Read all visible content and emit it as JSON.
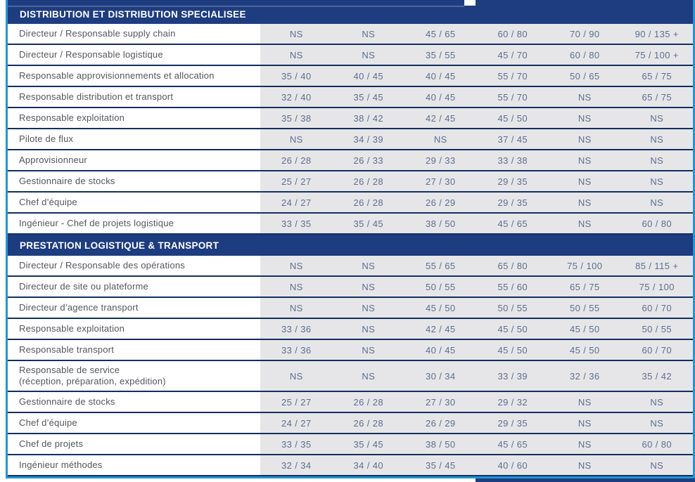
{
  "theme": {
    "navy": "#1e3c80",
    "cyan_border": "#2196d4",
    "cell_gray": "#e6e6e8",
    "row_separator": "#142f5f",
    "title_text": "#53565c",
    "value_text": "#5e6e8e",
    "header_text": "#ffffff"
  },
  "table": {
    "value_columns": 6,
    "sections": [
      {
        "title": "DISTRIBUTION ET DISTRIBUTION SPECIALISEE",
        "rows": [
          {
            "label": "Directeur / Responsable supply chain",
            "values": [
              "NS",
              "NS",
              "45 / 65",
              "60 / 80",
              "70 / 90",
              "90 / 135 +"
            ]
          },
          {
            "label": "Directeur / Responsable logistique",
            "values": [
              "NS",
              "NS",
              "35 / 55",
              "45 / 70",
              "60 / 80",
              "75 / 100 +"
            ]
          },
          {
            "label": "Responsable approvisionnements et allocation",
            "values": [
              "35 / 40",
              "40 / 45",
              "40 / 45",
              "55 / 70",
              "50 / 65",
              "65 / 75"
            ]
          },
          {
            "label": "Responsable distribution et transport",
            "values": [
              "32 / 40",
              "35 / 45",
              "40 / 45",
              "55 / 70",
              "NS",
              "65 / 75"
            ]
          },
          {
            "label": "Responsable exploitation",
            "values": [
              "35 / 38",
              "38 / 42",
              "42 / 45",
              "45 / 50",
              "NS",
              "NS"
            ]
          },
          {
            "label": "Pilote de flux",
            "values": [
              "NS",
              "34 / 39",
              "NS",
              "37 / 45",
              "NS",
              "NS"
            ]
          },
          {
            "label": "Approvisionneur",
            "values": [
              "26 / 28",
              "26 / 33",
              "29 / 33",
              "33 / 38",
              "NS",
              "NS"
            ]
          },
          {
            "label": "Gestionnaire de stocks",
            "values": [
              "25 / 27",
              "26 / 28",
              "27 / 30",
              "29 / 35",
              "NS",
              "NS"
            ]
          },
          {
            "label": "Chef d’équipe",
            "values": [
              "24 / 27",
              "26 / 28",
              "26 / 29",
              "29 / 35",
              "NS",
              "NS"
            ]
          },
          {
            "label": "Ingénieur - Chef de projets logistique",
            "values": [
              "33 / 35",
              "35 / 45",
              "38 / 50",
              "45 / 65",
              "NS",
              "60 / 80"
            ]
          }
        ]
      },
      {
        "title": "PRESTATION LOGISTIQUE & TRANSPORT",
        "rows": [
          {
            "label": "Directeur / Responsable des opérations",
            "values": [
              "NS",
              "NS",
              "55 / 65",
              "65 / 80",
              "75 / 100",
              "85 / 115 +"
            ]
          },
          {
            "label": "Directeur de site ou plateforme",
            "values": [
              "NS",
              "NS",
              "50 / 55",
              "55 / 60",
              "65 / 75",
              "75 / 100"
            ]
          },
          {
            "label": "Directeur d’agence transport",
            "values": [
              "NS",
              "NS",
              "45 / 50",
              "50 / 55",
              "50 / 55",
              "60 / 70"
            ]
          },
          {
            "label": "Responsable exploitation",
            "values": [
              "33 / 36",
              "NS",
              "42 / 45",
              "45 / 50",
              "45 / 50",
              "50 / 55"
            ]
          },
          {
            "label": "Responsable transport",
            "values": [
              "33 / 36",
              "NS",
              "40 / 45",
              "45 / 50",
              "45 / 50",
              "60 / 70"
            ]
          },
          {
            "label": "Responsable de service\n(réception, préparation, expédition)",
            "values": [
              "NS",
              "NS",
              "30 / 34",
              "33 / 39",
              "32 / 36",
              "35 / 42"
            ]
          },
          {
            "label": "Gestionnaire de stocks",
            "values": [
              "25 / 27",
              "26 / 28",
              "27 / 30",
              "29 / 32",
              "NS",
              "NS"
            ]
          },
          {
            "label": "Chef d’équipe",
            "values": [
              "24 / 27",
              "26 / 28",
              "26 / 29",
              "29 / 35",
              "NS",
              "NS"
            ]
          },
          {
            "label": "Chef de projets",
            "values": [
              "33 / 35",
              "35 / 45",
              "38 / 50",
              "45 / 65",
              "NS",
              "60 / 80"
            ]
          },
          {
            "label": "Ingénieur méthodes",
            "values": [
              "32 / 34",
              "34 / 40",
              "35 / 45",
              "40 / 60",
              "NS",
              "NS"
            ]
          }
        ]
      }
    ]
  }
}
